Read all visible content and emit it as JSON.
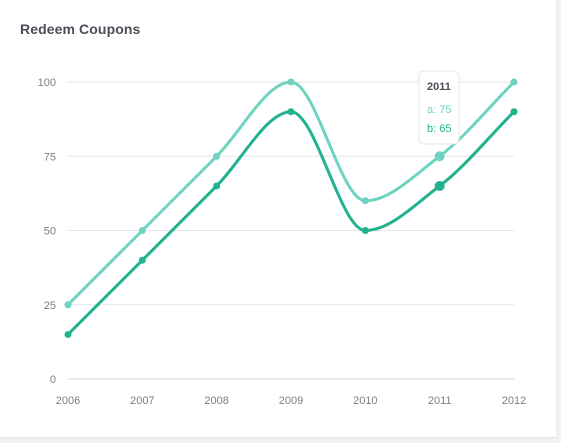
{
  "card": {
    "title": "Redeem Coupons"
  },
  "colors": {
    "a": "#6ed3c0",
    "b": "#21b290",
    "grid": "#e3e5e8",
    "axis": "#d0d3d7"
  },
  "chart_data": {
    "type": "line",
    "title": "Redeem Coupons",
    "categories": [
      "2006",
      "2007",
      "2008",
      "2009",
      "2010",
      "2011",
      "2012"
    ],
    "series": [
      {
        "name": "a",
        "values": [
          25,
          50,
          75,
          100,
          60,
          75,
          100
        ]
      },
      {
        "name": "b",
        "values": [
          15,
          40,
          65,
          90,
          50,
          65,
          90
        ]
      }
    ],
    "ylim": [
      0,
      100
    ],
    "yticks": [
      "0",
      "25",
      "50",
      "75",
      "100"
    ],
    "grid": true,
    "tooltip": {
      "category": "2011",
      "title": "2011",
      "lines": [
        "a: 75",
        "b: 65"
      ]
    }
  }
}
